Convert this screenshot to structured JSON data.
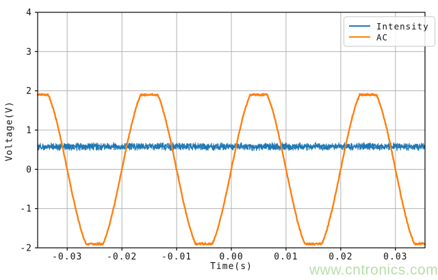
{
  "figure": {
    "background": "#ffffff",
    "watermark": {
      "text": "www.cntronics.com",
      "color": "#b6dfa8"
    }
  },
  "chart_data": {
    "type": "line",
    "title": "",
    "xlabel": "Time(s)",
    "ylabel": "Voltage(V)",
    "xlim": [
      -0.0354,
      0.0354
    ],
    "ylim": [
      -2,
      4
    ],
    "x_ticks": {
      "values": [
        -0.03,
        -0.02,
        -0.01,
        0.0,
        0.01,
        0.02,
        0.03
      ],
      "labels": [
        "-0.03",
        "-0.02",
        "-0.01",
        "0.00",
        "0.01",
        "0.02",
        "0.03"
      ]
    },
    "y_ticks": {
      "values": [
        -2,
        -1,
        0,
        1,
        2,
        3,
        4
      ],
      "labels": [
        "-2",
        "-1",
        "0",
        "1",
        "2",
        "3",
        "4"
      ]
    },
    "grid": true,
    "grid_color": "#b0b0b0",
    "spine_color": "#000000",
    "tick_label_color": "#111111",
    "noise_seed": 12,
    "legend": {
      "position": "upper right",
      "items": [
        {
          "label": "Intensity",
          "color": "#1f77b4"
        },
        {
          "label": "AC",
          "color": "#ff7f0e"
        }
      ]
    },
    "series": [
      {
        "name": "Intensity",
        "model": "constant_noisy",
        "color": "#1f77b4",
        "mean_v": 0.58,
        "noise_v": 0.11,
        "stroke_width": 1.0,
        "samples": 1300,
        "passes": 2
      },
      {
        "name": "AC",
        "model": "clipped_sine_noisy",
        "color": "#ff7f0e",
        "amplitude_v": 2.15,
        "clip_v": 1.9,
        "frequency_hz": 50,
        "phase_deg": 0,
        "noise_v": 0.03,
        "stroke_width": 2.4,
        "samples": 950,
        "passes": 1
      }
    ]
  }
}
